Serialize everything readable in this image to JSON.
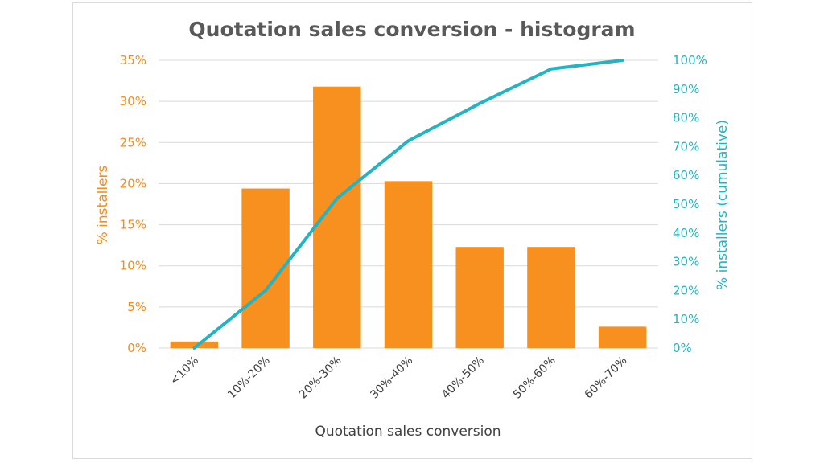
{
  "chart_data": {
    "type": "bar",
    "title": "Quotation sales conversion - histogram",
    "xlabel": "Quotation sales conversion",
    "ylabel": "% installers",
    "y2label": "% installers (cumulative)",
    "categories": [
      "<10%",
      "10%-20%",
      "20%-30%",
      "30%-40%",
      "40%-50%",
      "50%-60%",
      "60%-70%"
    ],
    "series": [
      {
        "name": "% installers",
        "type": "bar",
        "axis": "left",
        "values": [
          0.8,
          19.4,
          31.8,
          20.3,
          12.3,
          12.3,
          2.6
        ]
      },
      {
        "name": "% installers (cumulative)",
        "type": "line",
        "axis": "right",
        "values": [
          0,
          20,
          52,
          72,
          85,
          97,
          100
        ]
      }
    ],
    "ylim": [
      0,
      35
    ],
    "y2lim": [
      0,
      100
    ],
    "yticks": [
      "0%",
      "5%",
      "10%",
      "15%",
      "20%",
      "25%",
      "30%",
      "35%"
    ],
    "y2ticks": [
      "0%",
      "10%",
      "20%",
      "30%",
      "40%",
      "50%",
      "60%",
      "70%",
      "80%",
      "90%",
      "100%"
    ],
    "grid": true,
    "colors": {
      "bar": "#f7901e",
      "line": "#23b3c3",
      "left_axis_text": "#f28c1a",
      "right_axis_text": "#23b3c3",
      "grid": "#d9d9d9"
    }
  }
}
